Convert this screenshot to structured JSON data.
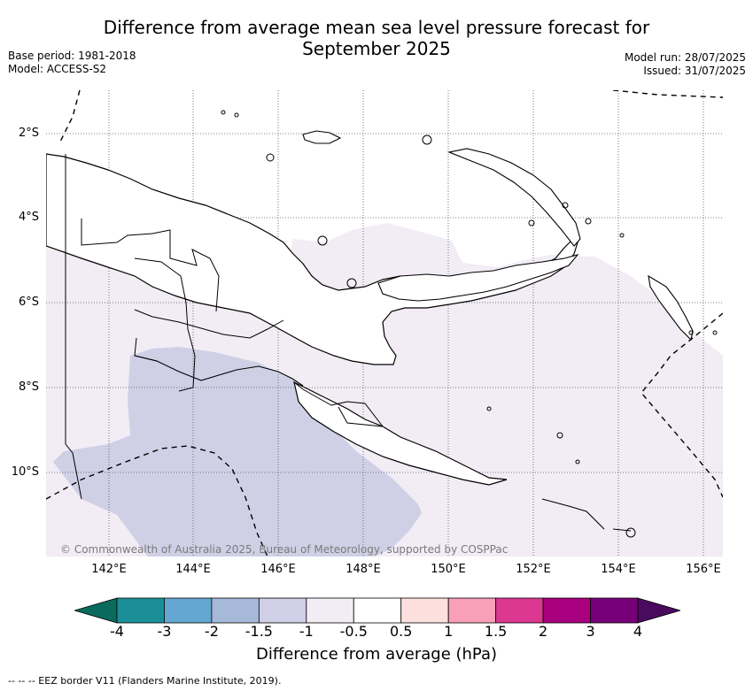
{
  "title_line1": "Difference from average mean sea level pressure forecast for",
  "title_line2": "September 2025",
  "base_period": "Base period: 1981-2018",
  "model": "Model: ACCESS-S2",
  "model_run": "Model run: 28/07/2025",
  "issued": "Issued: 31/07/2025",
  "copyright": "© Commonwealth of Australia 2025, Bureau of Meteorology, supported by COSPPac",
  "lat_labels": [
    "2°S",
    "4°S",
    "6°S",
    "8°S",
    "10°S"
  ],
  "lon_labels": [
    "142°E",
    "144°E",
    "146°E",
    "148°E",
    "150°E",
    "152°E",
    "154°E",
    "156°E"
  ],
  "colorbar": {
    "title": "Difference from average (hPa)",
    "ticks": [
      "-4",
      "-3",
      "-2",
      "-1.5",
      "-1",
      "-0.5",
      "0.5",
      "1",
      "1.5",
      "2",
      "3",
      "4"
    ],
    "under_color": "#0a6b5c",
    "over_color": "#4a0a5e",
    "colors": [
      "#1a8f98",
      "#64a8d2",
      "#a6b9d8",
      "#cfd0e6",
      "#f2ecf5",
      "#ffffff",
      "#fde0de",
      "#f9a0b8",
      "#dc3791",
      "#a8007e",
      "#770079"
    ]
  },
  "anomaly_colors": {
    "light": "#f2ecf5",
    "medium": "#cfd0e6"
  },
  "footnote": "--  --  -- EEZ border V11 (Flanders Marine Institute, 2019)."
}
